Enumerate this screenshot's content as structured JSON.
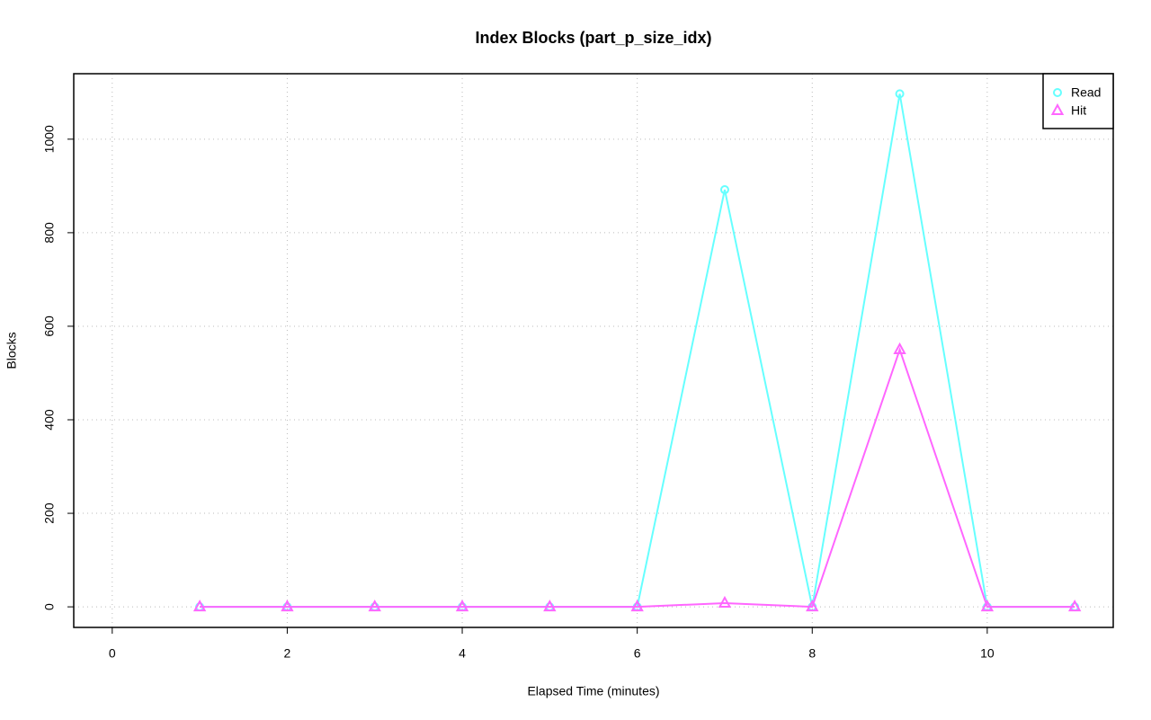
{
  "chart_data": {
    "type": "line",
    "title": "Index Blocks (part_p_size_idx)",
    "x_label": "Elapsed Time (minutes)",
    "y_label": "Blocks",
    "x": [
      1,
      2,
      3,
      4,
      5,
      6,
      7,
      8,
      9,
      10,
      11
    ],
    "series": [
      {
        "name": "Read",
        "color": "#66ffff",
        "marker": "circle",
        "values": [
          0,
          0,
          0,
          0,
          0,
          0,
          892,
          0,
          1097,
          0,
          0
        ]
      },
      {
        "name": "Hit",
        "color": "#ff66ff",
        "marker": "triangle",
        "values": [
          0,
          0,
          0,
          0,
          0,
          0,
          8,
          0,
          550,
          0,
          0
        ]
      }
    ],
    "xlim": [
      -0.44,
      11.44
    ],
    "xticks": [
      0,
      2,
      4,
      6,
      8,
      10
    ],
    "ylim": [
      -44,
      1140
    ],
    "yticks": [
      0,
      200,
      400,
      600,
      800,
      1000
    ],
    "grid": true,
    "legend": "top-right"
  }
}
